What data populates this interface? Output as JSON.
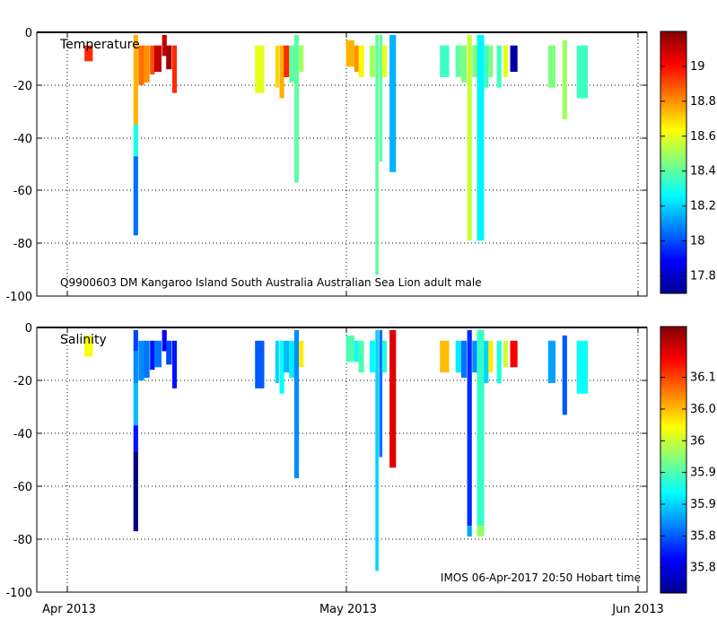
{
  "chart_data": [
    {
      "type": "heatmap",
      "panel": "temperature",
      "title": "Temperature",
      "annotation": "Q9900603 DM Kangaroo Island South Australia Australian Sea Lion adult male",
      "xlabel": "",
      "ylabel": "",
      "ylim": [
        -100,
        0
      ],
      "y_ticks": [
        0,
        -20,
        -40,
        -60,
        -80,
        -100
      ],
      "xlim_days": [
        -3,
        63
      ],
      "x_ticks": [
        {
          "day": 0,
          "label": "Apr 2013"
        },
        {
          "day": 30,
          "label": "May 2013"
        },
        {
          "day": 61,
          "label": "Jun 2013"
        }
      ],
      "colorbar": {
        "range": [
          17.7,
          19.2
        ],
        "ticks": [
          17.8,
          18,
          18.2,
          18.4,
          18.6,
          18.8,
          19
        ],
        "tick_labels": [
          "17.8",
          "18",
          "18.2",
          "18.4",
          "18.6",
          "18.8",
          "19"
        ]
      },
      "profiles": [
        {
          "day": 2.6,
          "width": 0.9,
          "segments": [
            {
              "top": -5,
              "bottom": -11,
              "value": 18.95
            }
          ]
        },
        {
          "day": 7.7,
          "width": 0.5,
          "segments": [
            {
              "top": -1,
              "bottom": -35,
              "value": 18.75
            },
            {
              "top": -35,
              "bottom": -47,
              "value": 18.3
            },
            {
              "top": -47,
              "bottom": -77,
              "value": 18.05
            }
          ]
        },
        {
          "day": 8.3,
          "width": 0.6,
          "segments": [
            {
              "top": -5,
              "bottom": -20,
              "value": 18.85
            }
          ]
        },
        {
          "day": 8.9,
          "width": 0.6,
          "segments": [
            {
              "top": -5,
              "bottom": -19,
              "value": 18.8
            }
          ]
        },
        {
          "day": 9.5,
          "width": 0.5,
          "segments": [
            {
              "top": -5,
              "bottom": -16,
              "value": 18.9
            }
          ]
        },
        {
          "day": 10.1,
          "width": 0.8,
          "segments": [
            {
              "top": -5,
              "bottom": -15,
              "value": 19.1
            }
          ]
        },
        {
          "day": 10.8,
          "width": 0.5,
          "segments": [
            {
              "top": -1,
              "bottom": -9,
              "value": 19.1
            }
          ]
        },
        {
          "day": 11.3,
          "width": 0.6,
          "segments": [
            {
              "top": -5,
              "bottom": -14,
              "value": 19.15
            }
          ]
        },
        {
          "day": 11.9,
          "width": 0.5,
          "segments": [
            {
              "top": -5,
              "bottom": -23,
              "value": 18.95
            }
          ]
        },
        {
          "day": 21.1,
          "width": 1.0,
          "segments": [
            {
              "top": -5,
              "bottom": -23,
              "value": 18.6
            }
          ]
        },
        {
          "day": 23.0,
          "width": 0.4,
          "segments": [
            {
              "top": -5,
              "bottom": -21,
              "value": 18.7
            }
          ]
        },
        {
          "day": 23.5,
          "width": 0.5,
          "segments": [
            {
              "top": -5,
              "bottom": -25,
              "value": 18.75
            }
          ]
        },
        {
          "day": 24.0,
          "width": 0.6,
          "segments": [
            {
              "top": -5,
              "bottom": -17,
              "value": 18.95
            }
          ]
        },
        {
          "day": 24.6,
          "width": 0.6,
          "segments": [
            {
              "top": -5,
              "bottom": -19,
              "value": 18.4
            }
          ]
        },
        {
          "day": 25.1,
          "width": 0.5,
          "segments": [
            {
              "top": -1,
              "bottom": -57,
              "value": 18.4
            }
          ]
        },
        {
          "day": 25.6,
          "width": 0.5,
          "segments": [
            {
              "top": -5,
              "bottom": -15,
              "value": 18.5
            }
          ]
        },
        {
          "day": 30.9,
          "width": 0.9,
          "segments": [
            {
              "top": -3,
              "bottom": -13,
              "value": 18.75
            }
          ]
        },
        {
          "day": 31.6,
          "width": 0.5,
          "segments": [
            {
              "top": -5,
              "bottom": -15,
              "value": 18.8
            }
          ]
        },
        {
          "day": 32.1,
          "width": 0.6,
          "segments": [
            {
              "top": -5,
              "bottom": -17,
              "value": 18.65
            }
          ]
        },
        {
          "day": 33.3,
          "width": 0.6,
          "segments": [
            {
              "top": -5,
              "bottom": -17,
              "value": 18.5
            }
          ]
        },
        {
          "day": 33.8,
          "width": 0.35,
          "segments": [
            {
              "top": -1,
              "bottom": -92,
              "value": 18.4
            }
          ]
        },
        {
          "day": 34.2,
          "width": 0.35,
          "segments": [
            {
              "top": -1,
              "bottom": -49,
              "value": 18.4
            }
          ]
        },
        {
          "day": 34.6,
          "width": 0.5,
          "segments": [
            {
              "top": -5,
              "bottom": -17,
              "value": 18.6
            }
          ]
        },
        {
          "day": 35.5,
          "width": 0.7,
          "segments": [
            {
              "top": -1,
              "bottom": -53,
              "value": 18.15
            }
          ]
        },
        {
          "day": 41.1,
          "width": 1.0,
          "segments": [
            {
              "top": -5,
              "bottom": -17,
              "value": 18.35
            }
          ]
        },
        {
          "day": 42.6,
          "width": 0.6,
          "segments": [
            {
              "top": -5,
              "bottom": -17,
              "value": 18.4
            }
          ]
        },
        {
          "day": 43.2,
          "width": 0.6,
          "segments": [
            {
              "top": -5,
              "bottom": -19,
              "value": 18.45
            }
          ]
        },
        {
          "day": 43.8,
          "width": 0.5,
          "segments": [
            {
              "top": -1,
              "bottom": -79,
              "value": 18.55
            }
          ]
        },
        {
          "day": 44.4,
          "width": 0.6,
          "segments": [
            {
              "top": -5,
              "bottom": -17,
              "value": 18.45
            }
          ]
        },
        {
          "day": 45.0,
          "width": 0.8,
          "segments": [
            {
              "top": -1,
              "bottom": -79,
              "value": 18.25
            }
          ]
        },
        {
          "day": 45.6,
          "width": 0.5,
          "segments": [
            {
              "top": -5,
              "bottom": -21,
              "value": 18.35
            }
          ]
        },
        {
          "day": 46.1,
          "width": 0.5,
          "segments": [
            {
              "top": -5,
              "bottom": -17,
              "value": 18.45
            }
          ]
        },
        {
          "day": 47.0,
          "width": 0.5,
          "segments": [
            {
              "top": -5,
              "bottom": -21,
              "value": 18.35
            }
          ]
        },
        {
          "day": 47.7,
          "width": 0.5,
          "segments": [
            {
              "top": -5,
              "bottom": -17,
              "value": 18.6
            }
          ]
        },
        {
          "day": 48.6,
          "width": 0.8,
          "segments": [
            {
              "top": -5,
              "bottom": -15,
              "value": 17.75
            }
          ]
        },
        {
          "day": 52.7,
          "width": 0.8,
          "segments": [
            {
              "top": -5,
              "bottom": -21,
              "value": 18.45
            }
          ]
        },
        {
          "day": 54.1,
          "width": 0.5,
          "segments": [
            {
              "top": -3,
              "bottom": -33,
              "value": 18.5
            }
          ]
        },
        {
          "day": 56.0,
          "width": 1.2,
          "segments": [
            {
              "top": -5,
              "bottom": -25,
              "value": 18.35
            }
          ]
        }
      ]
    },
    {
      "type": "heatmap",
      "panel": "salinity",
      "title": "Salinity",
      "annotation": "IMOS 06-Apr-2017 20:50 Hobart time",
      "xlabel": "",
      "ylabel": "",
      "ylim": [
        -100,
        0
      ],
      "y_ticks": [
        0,
        -20,
        -40,
        -60,
        -80,
        -100
      ],
      "xlim_days": [
        -3,
        63
      ],
      "x_ticks": [
        {
          "day": 0,
          "label": "Apr 2013"
        },
        {
          "day": 30,
          "label": "May 2013"
        },
        {
          "day": 61,
          "label": "Jun 2013"
        }
      ],
      "colorbar": {
        "range": [
          35.76,
          36.18
        ],
        "ticks": [
          35.8,
          35.85,
          35.9,
          35.95,
          36,
          36.05,
          36.1
        ],
        "tick_labels": [
          "35.8",
          "35.85",
          "35.9",
          "35.95",
          "36",
          "36.05",
          "36.1"
        ]
      },
      "profiles": [
        {
          "day": 2.6,
          "width": 0.9,
          "segments": [
            {
              "top": -3,
              "bottom": -11,
              "value": 36.02
            }
          ]
        },
        {
          "day": 7.7,
          "width": 0.5,
          "segments": [
            {
              "top": -1,
              "bottom": -9,
              "value": 35.84
            },
            {
              "top": -9,
              "bottom": -21,
              "value": 35.87
            },
            {
              "top": -21,
              "bottom": -37,
              "value": 35.89
            },
            {
              "top": -37,
              "bottom": -47,
              "value": 35.82
            },
            {
              "top": -47,
              "bottom": -77,
              "value": 35.76
            }
          ]
        },
        {
          "day": 8.3,
          "width": 0.6,
          "segments": [
            {
              "top": -5,
              "bottom": -20,
              "value": 35.87
            }
          ]
        },
        {
          "day": 8.9,
          "width": 0.6,
          "segments": [
            {
              "top": -5,
              "bottom": -19,
              "value": 35.86
            }
          ]
        },
        {
          "day": 9.5,
          "width": 0.5,
          "segments": [
            {
              "top": -5,
              "bottom": -16,
              "value": 35.82
            }
          ]
        },
        {
          "day": 10.1,
          "width": 0.8,
          "segments": [
            {
              "top": -5,
              "bottom": -15,
              "value": 35.86
            }
          ]
        },
        {
          "day": 10.8,
          "width": 0.5,
          "segments": [
            {
              "top": -1,
              "bottom": -9,
              "value": 35.81
            }
          ]
        },
        {
          "day": 11.3,
          "width": 0.6,
          "segments": [
            {
              "top": -5,
              "bottom": -14,
              "value": 35.84
            }
          ]
        },
        {
          "day": 11.9,
          "width": 0.5,
          "segments": [
            {
              "top": -5,
              "bottom": -23,
              "value": 35.82
            }
          ]
        },
        {
          "day": 21.1,
          "width": 1.0,
          "segments": [
            {
              "top": -5,
              "bottom": -23,
              "value": 35.85
            }
          ]
        },
        {
          "day": 23.0,
          "width": 0.4,
          "segments": [
            {
              "top": -5,
              "bottom": -21,
              "value": 35.9
            }
          ]
        },
        {
          "day": 23.5,
          "width": 0.5,
          "segments": [
            {
              "top": -5,
              "bottom": -25,
              "value": 35.92
            }
          ]
        },
        {
          "day": 24.0,
          "width": 0.6,
          "segments": [
            {
              "top": -5,
              "bottom": -17,
              "value": 35.89
            }
          ]
        },
        {
          "day": 24.6,
          "width": 0.6,
          "segments": [
            {
              "top": -5,
              "bottom": -19,
              "value": 35.91
            }
          ]
        },
        {
          "day": 25.1,
          "width": 0.5,
          "segments": [
            {
              "top": -1,
              "bottom": -57,
              "value": 35.87
            }
          ]
        },
        {
          "day": 25.6,
          "width": 0.5,
          "segments": [
            {
              "top": -5,
              "bottom": -15,
              "value": 36.03
            }
          ]
        },
        {
          "day": 30.9,
          "width": 0.9,
          "segments": [
            {
              "top": -3,
              "bottom": -13,
              "value": 35.95
            }
          ]
        },
        {
          "day": 31.6,
          "width": 0.5,
          "segments": [
            {
              "top": -5,
              "bottom": -13,
              "value": 35.92
            }
          ]
        },
        {
          "day": 32.1,
          "width": 0.6,
          "segments": [
            {
              "top": -5,
              "bottom": -17,
              "value": 35.95
            }
          ]
        },
        {
          "day": 33.3,
          "width": 0.6,
          "segments": [
            {
              "top": -5,
              "bottom": -17,
              "value": 35.92
            }
          ]
        },
        {
          "day": 33.8,
          "width": 0.35,
          "segments": [
            {
              "top": -1,
              "bottom": -92,
              "value": 35.9
            }
          ]
        },
        {
          "day": 34.2,
          "width": 0.35,
          "segments": [
            {
              "top": -1,
              "bottom": -49,
              "value": 35.86
            }
          ]
        },
        {
          "day": 34.6,
          "width": 0.5,
          "segments": [
            {
              "top": -5,
              "bottom": -17,
              "value": 35.93
            }
          ]
        },
        {
          "day": 35.5,
          "width": 0.7,
          "segments": [
            {
              "top": -1,
              "bottom": -53,
              "value": 36.14
            }
          ]
        },
        {
          "day": 41.1,
          "width": 1.0,
          "segments": [
            {
              "top": -5,
              "bottom": -17,
              "value": 36.05
            }
          ]
        },
        {
          "day": 42.6,
          "width": 0.6,
          "segments": [
            {
              "top": -5,
              "bottom": -17,
              "value": 35.91
            }
          ]
        },
        {
          "day": 43.2,
          "width": 0.6,
          "segments": [
            {
              "top": -5,
              "bottom": -19,
              "value": 35.86
            }
          ]
        },
        {
          "day": 43.8,
          "width": 0.5,
          "segments": [
            {
              "top": -1,
              "bottom": -75,
              "value": 35.83
            },
            {
              "top": -75,
              "bottom": -79,
              "value": 35.88
            }
          ]
        },
        {
          "day": 44.4,
          "width": 0.6,
          "segments": [
            {
              "top": -5,
              "bottom": -17,
              "value": 35.87
            }
          ]
        },
        {
          "day": 45.0,
          "width": 0.8,
          "segments": [
            {
              "top": -1,
              "bottom": -75,
              "value": 35.94
            },
            {
              "top": -75,
              "bottom": -79,
              "value": 35.98
            }
          ]
        },
        {
          "day": 45.6,
          "width": 0.5,
          "segments": [
            {
              "top": -5,
              "bottom": -21,
              "value": 35.9
            }
          ]
        },
        {
          "day": 46.1,
          "width": 0.5,
          "segments": [
            {
              "top": -5,
              "bottom": -17,
              "value": 36.03
            }
          ]
        },
        {
          "day": 47.0,
          "width": 0.5,
          "segments": [
            {
              "top": -5,
              "bottom": -21,
              "value": 35.93
            }
          ]
        },
        {
          "day": 47.7,
          "width": 0.5,
          "segments": [
            {
              "top": -5,
              "bottom": -15,
              "value": 36.0
            }
          ]
        },
        {
          "day": 48.6,
          "width": 0.8,
          "segments": [
            {
              "top": -5,
              "bottom": -15,
              "value": 36.13
            }
          ]
        },
        {
          "day": 52.7,
          "width": 0.8,
          "segments": [
            {
              "top": -5,
              "bottom": -21,
              "value": 35.88
            }
          ]
        },
        {
          "day": 54.1,
          "width": 0.5,
          "segments": [
            {
              "top": -3,
              "bottom": -33,
              "value": 35.85
            }
          ]
        },
        {
          "day": 56.0,
          "width": 1.2,
          "segments": [
            {
              "top": -5,
              "bottom": -25,
              "value": 35.92
            }
          ]
        }
      ]
    }
  ]
}
